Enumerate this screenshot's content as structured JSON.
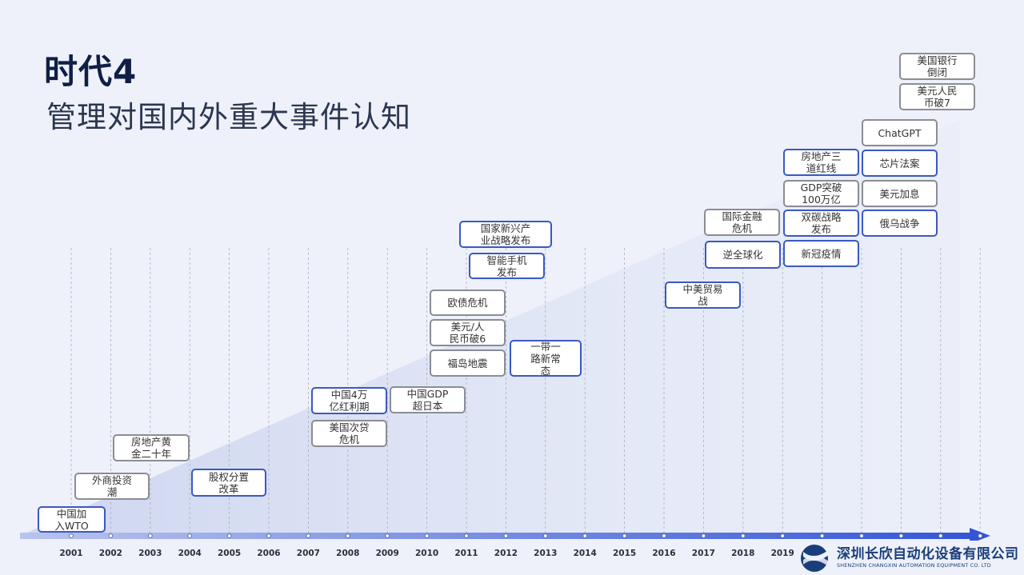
{
  "header": {
    "title": "时代4",
    "subtitle": "管理对国内外重大事件认知"
  },
  "colors": {
    "blue_border": "#3a58c4",
    "gray_border": "#8a8d94",
    "axis": "#3a58c4",
    "title": "#0f1f45"
  },
  "timeline": {
    "years": [
      "2001",
      "2002",
      "2003",
      "2004",
      "2005",
      "2006",
      "2007",
      "2008",
      "2009",
      "2010",
      "2011",
      "2012",
      "2013",
      "2014",
      "2015",
      "2016",
      "2017",
      "2018",
      "2019"
    ],
    "events": [
      {
        "label": "中国加\n入WTO",
        "style": "blue"
      },
      {
        "label": "外商投资\n潮",
        "style": "gray"
      },
      {
        "label": "房地产黄\n金二十年",
        "style": "gray"
      },
      {
        "label": "股权分置\n改革",
        "style": "blue"
      },
      {
        "label": "美国次贷\n危机",
        "style": "gray"
      },
      {
        "label": "中国4万\n亿红利期",
        "style": "blue"
      },
      {
        "label": "中国GDP\n超日本",
        "style": "gray"
      },
      {
        "label": "福岛地震",
        "style": "gray"
      },
      {
        "label": "美元/人\n民币破6",
        "style": "gray"
      },
      {
        "label": "欧债危机",
        "style": "gray"
      },
      {
        "label": "一带一\n路新常\n态",
        "style": "blue"
      },
      {
        "label": "智能手机\n发布",
        "style": "blue"
      },
      {
        "label": "国家新兴产\n业战略发布",
        "style": "blue"
      },
      {
        "label": "中美贸易\n战",
        "style": "blue"
      },
      {
        "label": "逆全球化",
        "style": "blue"
      },
      {
        "label": "国际金融\n危机",
        "style": "gray"
      },
      {
        "label": "新冠疫情",
        "style": "blue"
      },
      {
        "label": "双碳战略\n发布",
        "style": "blue"
      },
      {
        "label": "GDP突破\n100万亿",
        "style": "gray"
      },
      {
        "label": "房地产三\n道红线",
        "style": "blue"
      },
      {
        "label": "俄乌战争",
        "style": "blue"
      },
      {
        "label": "美元加息",
        "style": "gray"
      },
      {
        "label": "芯片法案",
        "style": "blue"
      },
      {
        "label": "ChatGPT",
        "style": "gray"
      },
      {
        "label": "美元人民\n币破7",
        "style": "gray"
      },
      {
        "label": "美国银行\n倒闭",
        "style": "gray"
      }
    ]
  },
  "logo": {
    "name_cn": "深圳长欣自动化设备有限公司",
    "name_en": "SHENZHEN CHANGXIN AUTOMATION EQUIPMENT CO. LTD"
  }
}
